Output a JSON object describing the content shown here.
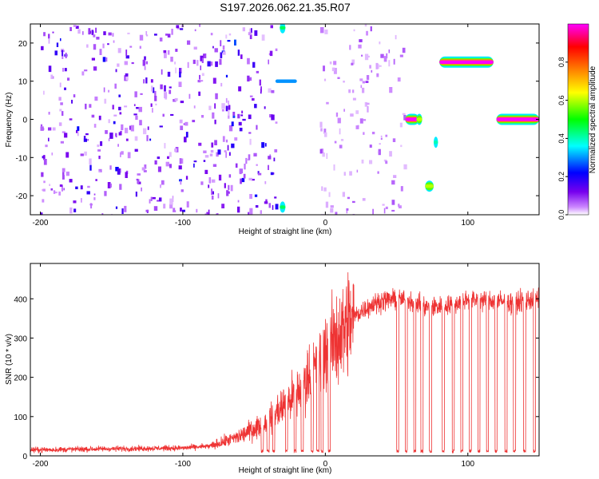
{
  "title": "S197.2026.062.21.35.R07",
  "chart_data": [
    {
      "type": "heatmap",
      "xlabel": "Height of straight line (km)",
      "ylabel": "Frequency (Hz)",
      "xlim": [
        -207,
        150
      ],
      "ylim": [
        -25,
        25
      ],
      "xticks": [
        -200,
        -100,
        0,
        100
      ],
      "yticks": [
        -20,
        -10,
        0,
        10,
        20
      ],
      "colorbar": {
        "label": "Normalized spectral amplitude",
        "range": [
          0,
          1
        ],
        "ticks": [
          0.0,
          0.2,
          0.4,
          0.6,
          0.8
        ],
        "colors": [
          "#ffffff",
          "#cc88ff",
          "#7700ee",
          "#0000ff",
          "#00ffff",
          "#00ff00",
          "#ffff00",
          "#ff8000",
          "#ff0000",
          "#ff00ff"
        ]
      },
      "features": [
        {
          "x": [
            -200,
            -75
          ],
          "freq": [
            -25,
            25
          ],
          "amp": 0.25
        },
        {
          "x": [
            -75,
            -35
          ],
          "freq": [
            -25,
            25
          ],
          "amp": 0.3
        },
        {
          "x": [
            -32,
            -28
          ],
          "freq": 24,
          "amp": 0.45
        },
        {
          "x": [
            -32,
            -28
          ],
          "freq": -23,
          "amp": 0.45
        },
        {
          "x": [
            -35,
            -20
          ],
          "freq": 10,
          "amp": 0.3
        },
        {
          "x": [
            -5,
            55
          ],
          "freq": [
            -25,
            25
          ],
          "amp": 0.1
        },
        {
          "x": [
            56,
            66
          ],
          "freq": 0,
          "amp": 1.0
        },
        {
          "x": [
            64,
            68
          ],
          "freq": 0,
          "amp": 0.6
        },
        {
          "x": [
            70,
            76
          ],
          "freq": -17.5,
          "amp": 0.6
        },
        {
          "x": [
            76,
            79
          ],
          "freq": -6,
          "amp": 0.4
        },
        {
          "x": [
            80,
            118
          ],
          "freq": 15,
          "amp": 1.0
        },
        {
          "x": [
            120,
            150
          ],
          "freq": 0,
          "amp": 1.0
        }
      ]
    },
    {
      "type": "line",
      "xlabel": "Height of straight line (km)",
      "ylabel": "SNR (10 * v/v)",
      "xlim": [
        -207,
        150
      ],
      "ylim": [
        0,
        490
      ],
      "xticks": [
        -200,
        -100,
        0,
        100
      ],
      "yticks": [
        0,
        100,
        200,
        300,
        400
      ],
      "color": "#ee3333",
      "x": [
        -207,
        -150,
        -100,
        -80,
        -60,
        -40,
        -20,
        0,
        10,
        20,
        30,
        40,
        50,
        60,
        70,
        80,
        90,
        100,
        110,
        120,
        130,
        140,
        150
      ],
      "y": [
        15,
        18,
        20,
        25,
        50,
        90,
        160,
        260,
        310,
        355,
        380,
        395,
        400,
        395,
        380,
        380,
        385,
        400,
        395,
        395,
        390,
        395,
        400
      ],
      "dropouts_x": [
        -45,
        -41,
        -37,
        -28,
        -22,
        -17,
        -10,
        -6,
        -3,
        2,
        50,
        56,
        62,
        67,
        73,
        82,
        89,
        95,
        101,
        107,
        113,
        119,
        126,
        132,
        139,
        146
      ]
    }
  ]
}
